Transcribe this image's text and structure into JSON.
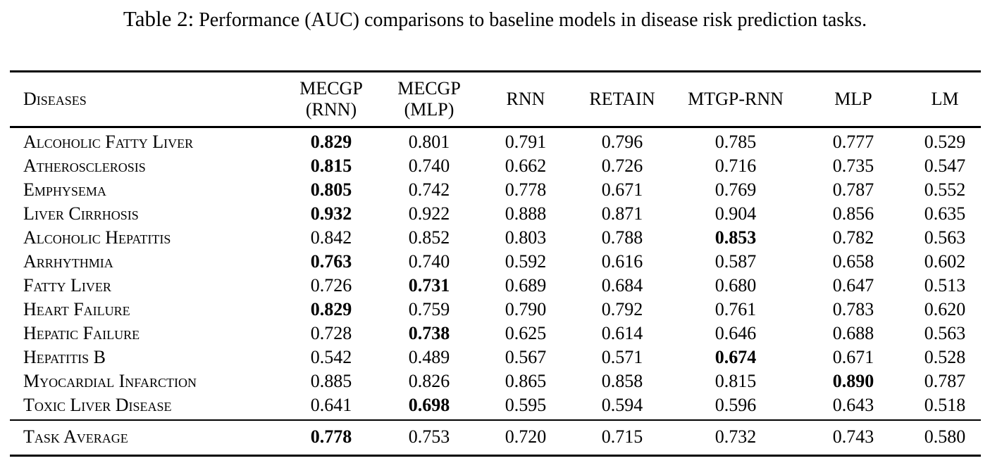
{
  "title": {
    "prefix": "Table 2:",
    "text": "Performance (AUC) comparisons to baseline models in disease risk prediction tasks."
  },
  "colors": {
    "text": "#000000",
    "background": "#ffffff",
    "rule": "#000000"
  },
  "table": {
    "headers": [
      {
        "label": "Diseases"
      },
      {
        "label": "MECGP",
        "sub": "(RNN)"
      },
      {
        "label": "MECGP",
        "sub": "(MLP)"
      },
      {
        "label": "RNN"
      },
      {
        "label": "RETAIN"
      },
      {
        "label": "MTGP-RNN"
      },
      {
        "label": "MLP"
      },
      {
        "label": "LM"
      }
    ],
    "rows": [
      {
        "disease": "Alcoholic Fatty Liver",
        "values": [
          "0.829",
          "0.801",
          "0.791",
          "0.796",
          "0.785",
          "0.777",
          "0.529"
        ],
        "bold_col": 0
      },
      {
        "disease": "Atherosclerosis",
        "values": [
          "0.815",
          "0.740",
          "0.662",
          "0.726",
          "0.716",
          "0.735",
          "0.547"
        ],
        "bold_col": 0
      },
      {
        "disease": "Emphysema",
        "values": [
          "0.805",
          "0.742",
          "0.778",
          "0.671",
          "0.769",
          "0.787",
          "0.552"
        ],
        "bold_col": 0
      },
      {
        "disease": "Liver Cirrhosis",
        "values": [
          "0.932",
          "0.922",
          "0.888",
          "0.871",
          "0.904",
          "0.856",
          "0.635"
        ],
        "bold_col": 0
      },
      {
        "disease": "Alcoholic Hepatitis",
        "values": [
          "0.842",
          "0.852",
          "0.803",
          "0.788",
          "0.853",
          "0.782",
          "0.563"
        ],
        "bold_col": 4
      },
      {
        "disease": "Arrhythmia",
        "values": [
          "0.763",
          "0.740",
          "0.592",
          "0.616",
          "0.587",
          "0.658",
          "0.602"
        ],
        "bold_col": 0
      },
      {
        "disease": "Fatty Liver",
        "values": [
          "0.726",
          "0.731",
          "0.689",
          "0.684",
          "0.680",
          "0.647",
          "0.513"
        ],
        "bold_col": 1
      },
      {
        "disease": "Heart Failure",
        "values": [
          "0.829",
          "0.759",
          "0.790",
          "0.792",
          "0.761",
          "0.783",
          "0.620"
        ],
        "bold_col": 0
      },
      {
        "disease": "Hepatic Failure",
        "values": [
          "0.728",
          "0.738",
          "0.625",
          "0.614",
          "0.646",
          "0.688",
          "0.563"
        ],
        "bold_col": 1
      },
      {
        "disease": "Hepatitis B",
        "values": [
          "0.542",
          "0.489",
          "0.567",
          "0.571",
          "0.674",
          "0.671",
          "0.528"
        ],
        "bold_col": 4
      },
      {
        "disease": "Myocardial Infarction",
        "values": [
          "0.885",
          "0.826",
          "0.865",
          "0.858",
          "0.815",
          "0.890",
          "0.787"
        ],
        "bold_col": 5
      },
      {
        "disease": "Toxic Liver Disease",
        "values": [
          "0.641",
          "0.698",
          "0.595",
          "0.594",
          "0.596",
          "0.643",
          "0.518"
        ],
        "bold_col": 1
      }
    ],
    "footer": {
      "label": "Task Average",
      "values": [
        "0.778",
        "0.753",
        "0.720",
        "0.715",
        "0.732",
        "0.743",
        "0.580"
      ],
      "bold_col": 0
    }
  }
}
